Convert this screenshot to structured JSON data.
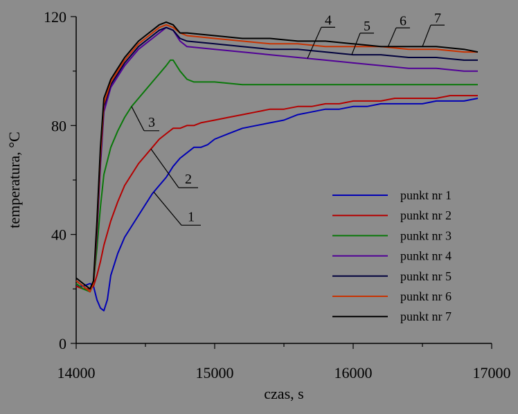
{
  "chart_data": {
    "type": "line",
    "title": "",
    "xlabel": "czas, s",
    "ylabel": "temperatura, °C",
    "xlim": [
      14000,
      17000
    ],
    "ylim": [
      0,
      120
    ],
    "x_ticks": [
      14000,
      15000,
      16000,
      17000
    ],
    "y_ticks": [
      0,
      40,
      80,
      120
    ],
    "grid": false,
    "legend_position": "right",
    "background": "#8c8c8c",
    "series": [
      {
        "name": "punkt nr 1",
        "color": "#0000b4",
        "label": "1",
        "x": [
          14000,
          14050,
          14100,
          14125,
          14150,
          14175,
          14200,
          14225,
          14250,
          14300,
          14350,
          14400,
          14450,
          14500,
          14550,
          14600,
          14650,
          14700,
          14750,
          14800,
          14850,
          14900,
          14950,
          15000,
          15100,
          15200,
          15300,
          15400,
          15500,
          15600,
          15700,
          15800,
          15900,
          16000,
          16100,
          16200,
          16300,
          16400,
          16500,
          16600,
          16700,
          16800,
          16900
        ],
        "y": [
          21,
          21,
          22,
          21,
          16,
          13,
          12,
          16,
          25,
          33,
          39,
          43,
          47,
          51,
          55,
          58,
          61,
          65,
          68,
          70,
          72,
          72,
          73,
          75,
          77,
          79,
          80,
          81,
          82,
          84,
          85,
          86,
          86,
          87,
          87,
          88,
          88,
          88,
          88,
          89,
          89,
          89,
          90
        ]
      },
      {
        "name": "punkt nr 2",
        "color": "#b40000",
        "label": "2",
        "x": [
          14000,
          14050,
          14100,
          14125,
          14150,
          14175,
          14200,
          14250,
          14300,
          14350,
          14400,
          14450,
          14500,
          14550,
          14600,
          14650,
          14700,
          14750,
          14800,
          14850,
          14900,
          15000,
          15100,
          15200,
          15300,
          15400,
          15500,
          15600,
          15700,
          15800,
          15900,
          16000,
          16100,
          16200,
          16300,
          16400,
          16500,
          16600,
          16700,
          16800,
          16900
        ],
        "y": [
          21,
          20,
          20,
          21,
          25,
          30,
          36,
          45,
          52,
          58,
          62,
          66,
          69,
          72,
          75,
          77,
          79,
          79,
          80,
          80,
          81,
          82,
          83,
          84,
          85,
          86,
          86,
          87,
          87,
          88,
          88,
          89,
          89,
          89,
          90,
          90,
          90,
          90,
          91,
          91,
          91
        ]
      },
      {
        "name": "punkt nr 3",
        "color": "#0a780a",
        "label": "3",
        "x": [
          14000,
          14050,
          14100,
          14125,
          14150,
          14175,
          14200,
          14250,
          14300,
          14350,
          14400,
          14450,
          14500,
          14550,
          14600,
          14650,
          14680,
          14700,
          14750,
          14800,
          14850,
          14900,
          15000,
          15200,
          15400,
          15600,
          15800,
          16000,
          16200,
          16400,
          16600,
          16800,
          16900
        ],
        "y": [
          22,
          20,
          19,
          22,
          35,
          50,
          62,
          72,
          78,
          83,
          87,
          90,
          93,
          96,
          99,
          102,
          104,
          104,
          100,
          97,
          96,
          96,
          96,
          95,
          95,
          95,
          95,
          95,
          95,
          95,
          95,
          95,
          95
        ]
      },
      {
        "name": "punkt nr 4",
        "color": "#500096",
        "label": "4",
        "x": [
          14000,
          14050,
          14100,
          14125,
          14150,
          14175,
          14200,
          14250,
          14300,
          14350,
          14400,
          14450,
          14500,
          14550,
          14600,
          14650,
          14700,
          14750,
          14800,
          15000,
          15200,
          15400,
          15600,
          15800,
          16000,
          16200,
          16400,
          16600,
          16800,
          16900
        ],
        "y": [
          23,
          21,
          19,
          22,
          40,
          65,
          85,
          94,
          98,
          102,
          105,
          108,
          110,
          112,
          114,
          116,
          115,
          111,
          109,
          108,
          107,
          106,
          105,
          104,
          103,
          102,
          101,
          101,
          100,
          100
        ]
      },
      {
        "name": "punkt nr 5",
        "color": "#00003c",
        "label": "5",
        "x": [
          14000,
          14050,
          14100,
          14125,
          14150,
          14175,
          14200,
          14250,
          14300,
          14350,
          14400,
          14450,
          14500,
          14550,
          14600,
          14650,
          14700,
          14750,
          14800,
          15000,
          15200,
          15400,
          15600,
          15800,
          16000,
          16200,
          16400,
          16600,
          16800,
          16900
        ],
        "y": [
          23,
          21,
          19,
          22,
          42,
          68,
          87,
          95,
          99,
          103,
          106,
          109,
          111,
          113,
          115,
          116,
          115,
          112,
          111,
          110,
          109,
          108,
          108,
          107,
          106,
          106,
          105,
          105,
          104,
          104
        ]
      },
      {
        "name": "punkt nr 6",
        "color": "#c83200",
        "label": "6",
        "x": [
          14000,
          14050,
          14100,
          14125,
          14150,
          14175,
          14200,
          14250,
          14300,
          14350,
          14400,
          14450,
          14500,
          14550,
          14600,
          14650,
          14700,
          14750,
          14800,
          15000,
          15200,
          15400,
          15600,
          15800,
          16000,
          16200,
          16400,
          16600,
          16800,
          16900
        ],
        "y": [
          23,
          21,
          19,
          22,
          43,
          69,
          88,
          96,
          100,
          104,
          107,
          110,
          112,
          114,
          116,
          117,
          116,
          114,
          113,
          112,
          111,
          110,
          110,
          109,
          109,
          109,
          108,
          108,
          107,
          107
        ]
      },
      {
        "name": "punkt nr 7",
        "color": "#000000",
        "label": "7",
        "x": [
          14000,
          14050,
          14100,
          14125,
          14150,
          14175,
          14200,
          14250,
          14300,
          14350,
          14400,
          14450,
          14500,
          14550,
          14600,
          14650,
          14700,
          14750,
          14800,
          15000,
          15200,
          15400,
          15600,
          15800,
          16000,
          16200,
          16400,
          16600,
          16800,
          16900
        ],
        "y": [
          24,
          22,
          20,
          23,
          45,
          72,
          90,
          97,
          101,
          105,
          108,
          111,
          113,
          115,
          117,
          118,
          117,
          114,
          114,
          113,
          112,
          112,
          111,
          111,
          110,
          109,
          109,
          109,
          108,
          107
        ]
      }
    ]
  }
}
